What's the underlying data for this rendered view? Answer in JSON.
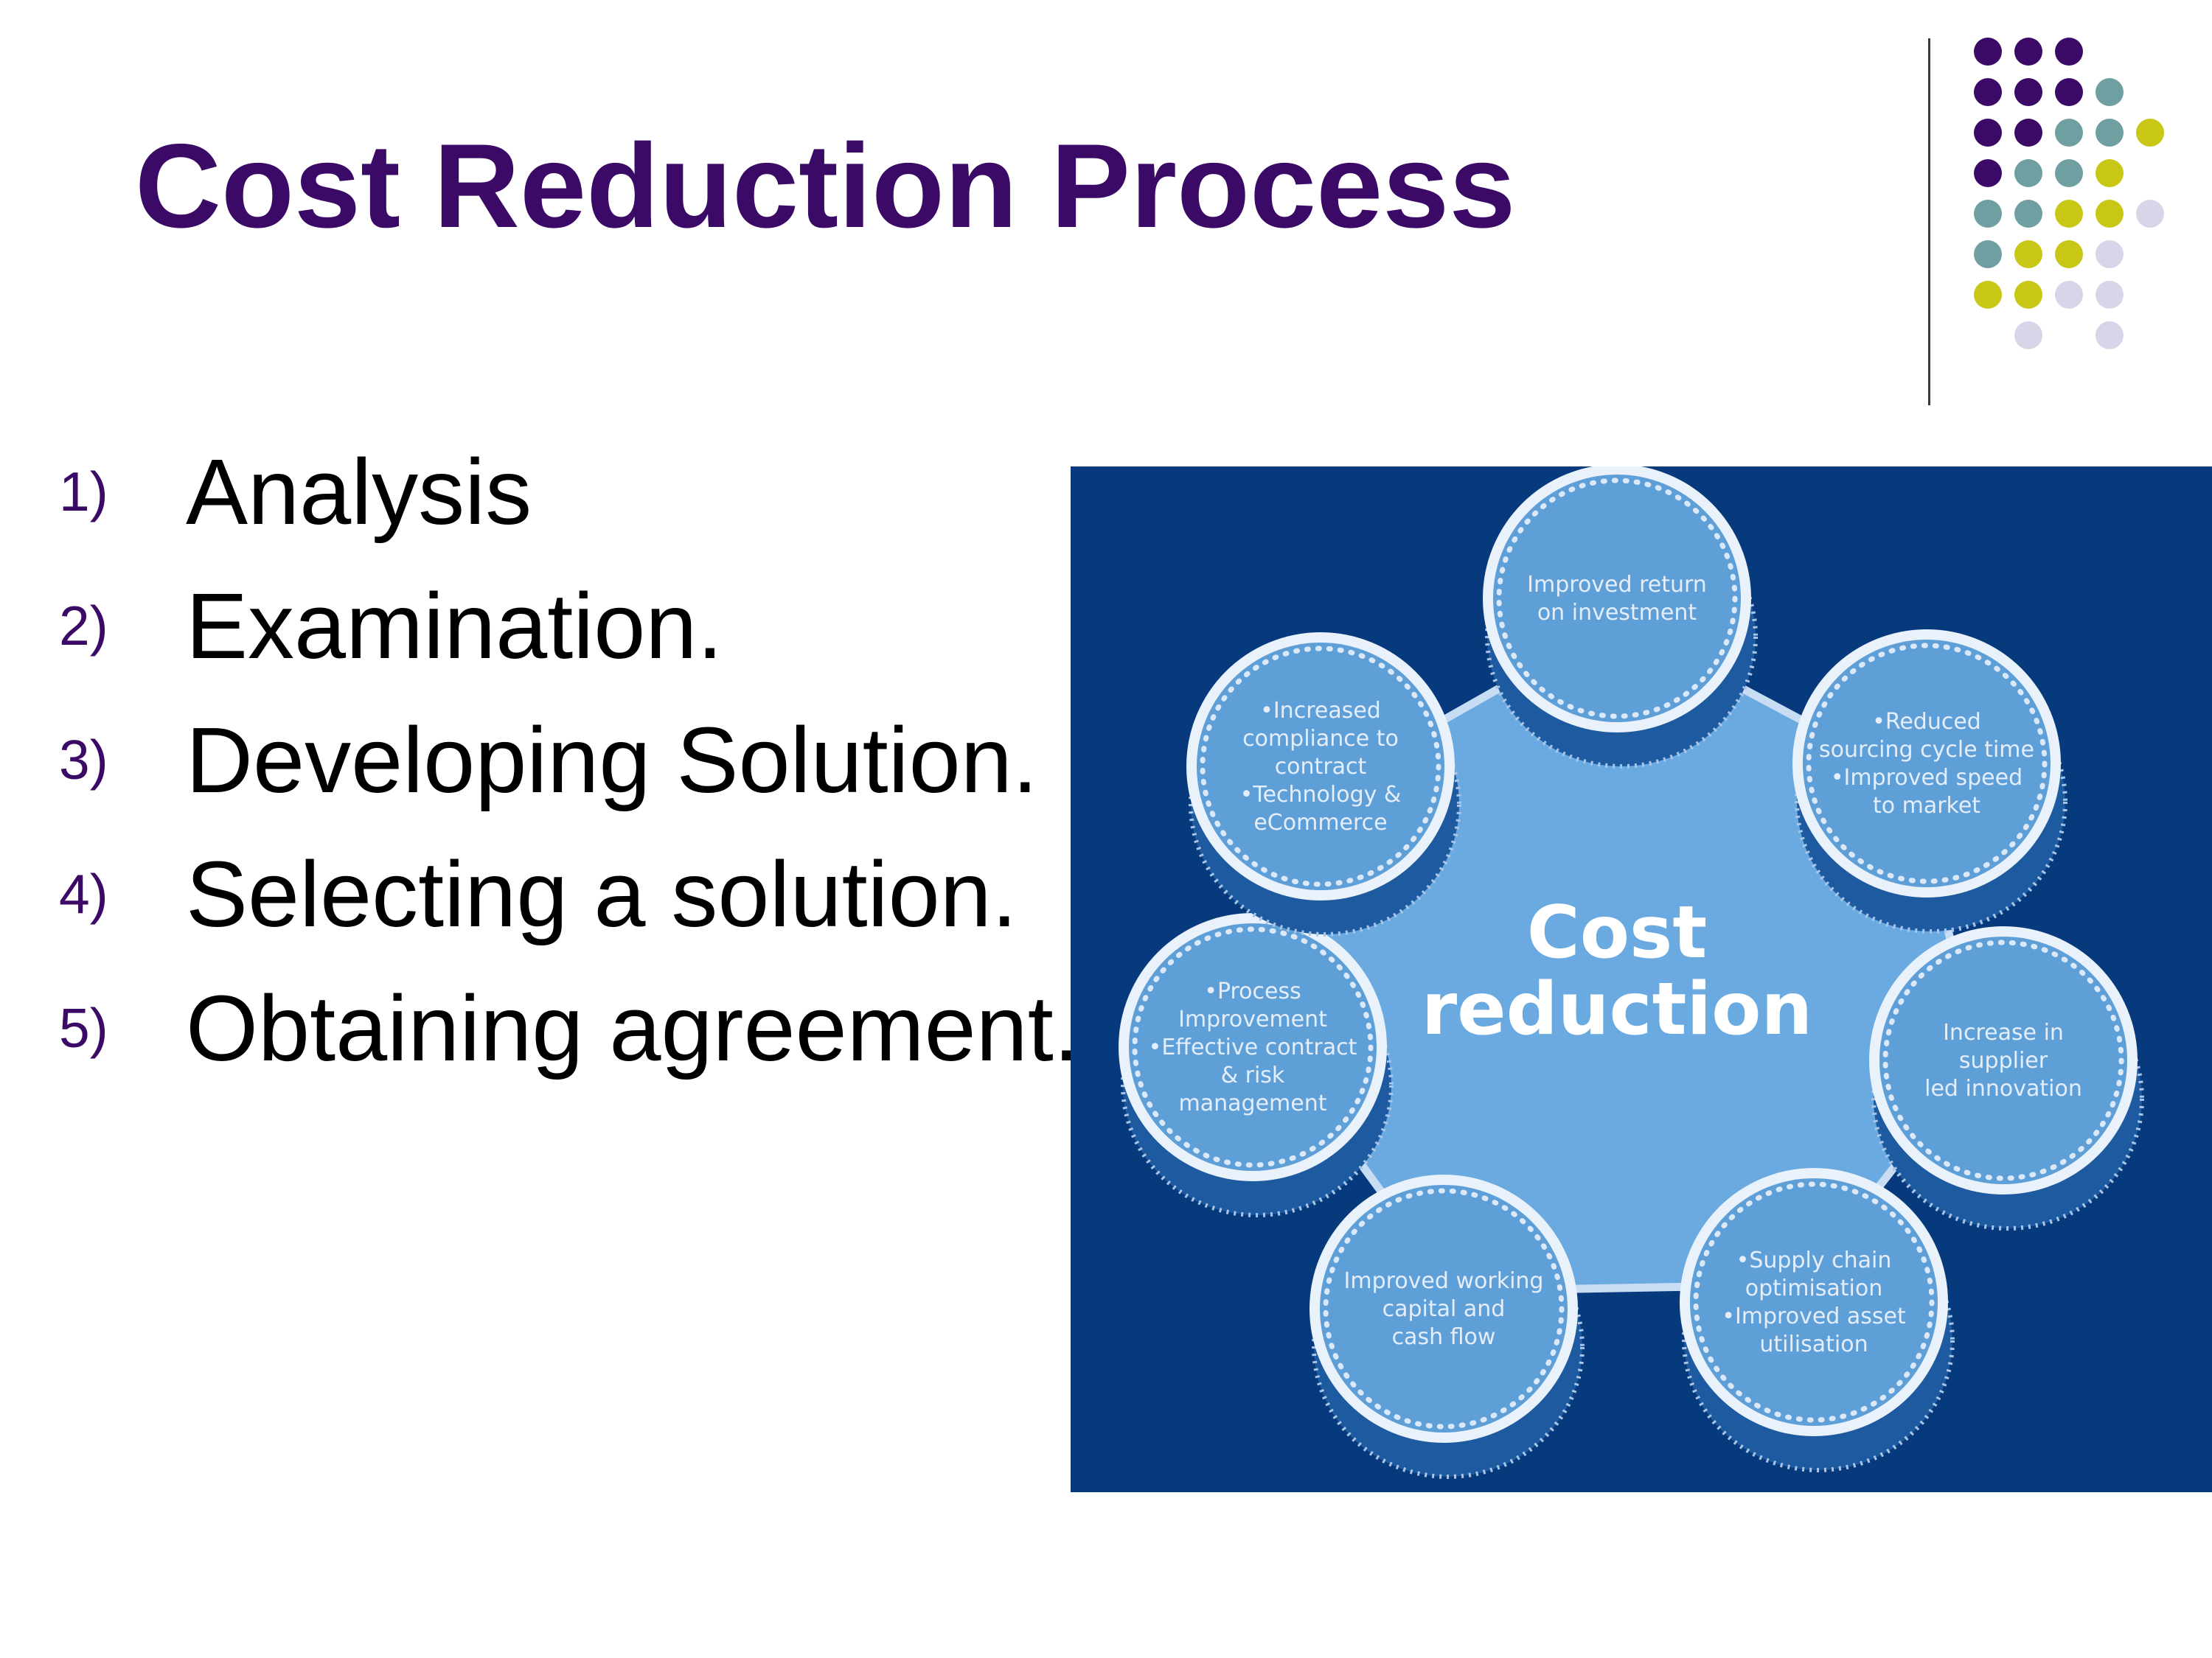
{
  "slide": {
    "title": "Cost Reduction Process",
    "steps": [
      {
        "number": "1)",
        "label": "Analysis"
      },
      {
        "number": "2)",
        "label": "Examination."
      },
      {
        "number": "3)",
        "label": "Developing Solution."
      },
      {
        "number": "4)",
        "label": "Selecting a solution."
      },
      {
        "number": "5)",
        "label": "Obtaining agreement."
      }
    ]
  },
  "diagram": {
    "center": [
      "Cost",
      "reduction"
    ],
    "nodes": [
      {
        "lines": [
          "Improved return",
          "on investment"
        ]
      },
      {
        "lines": [
          "•Reduced",
          "sourcing cycle time",
          "•Improved speed",
          "to market"
        ]
      },
      {
        "lines": [
          "Increase in",
          "supplier",
          "led innovation"
        ]
      },
      {
        "lines": [
          "•Supply chain",
          "optimisation",
          "•Improved asset",
          "utilisation"
        ]
      },
      {
        "lines": [
          "Improved working",
          "capital and",
          "cash flow"
        ]
      },
      {
        "lines": [
          "•Process",
          "Improvement",
          "•Effective contract",
          "& risk",
          "management"
        ]
      },
      {
        "lines": [
          "•Increased",
          "compliance to",
          "contract",
          "•Technology &",
          "eCommerce"
        ]
      }
    ]
  },
  "colors": {
    "title": "#3a0a66",
    "diagram_background": "#063a7c",
    "hub": "#6aaae0",
    "dot_palette": [
      "#3a0a66",
      "#6f9fa0",
      "#c9c716",
      "#d6d6e8"
    ]
  }
}
